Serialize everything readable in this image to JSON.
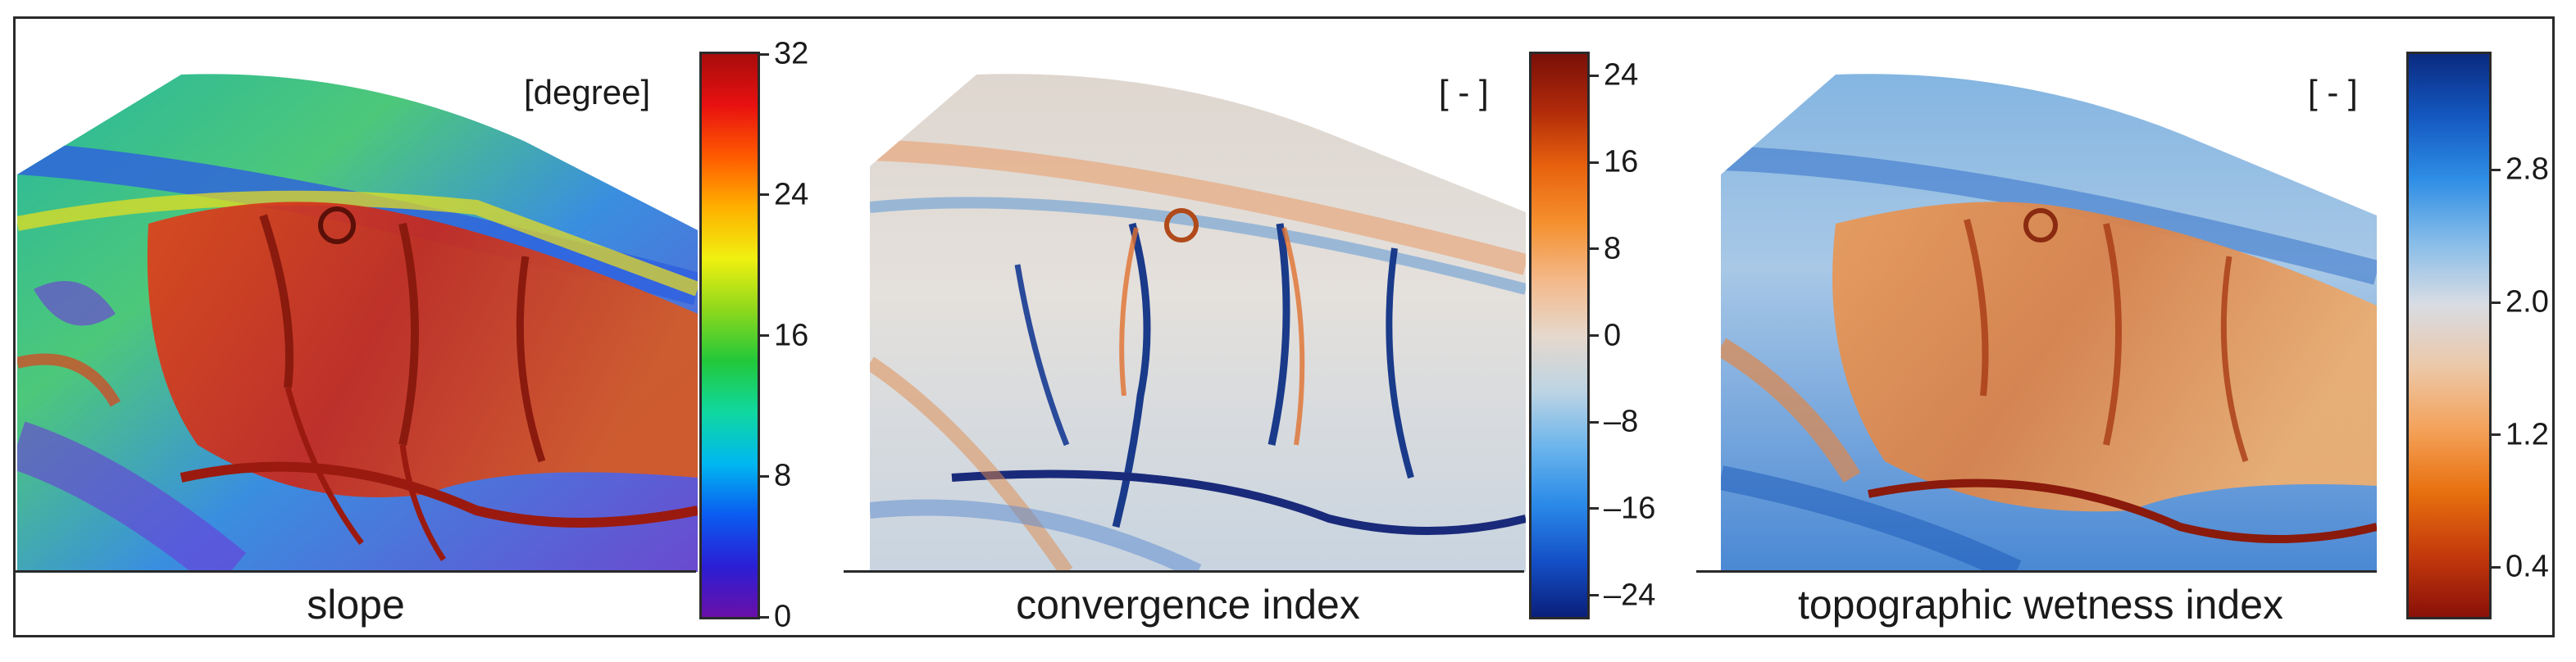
{
  "panels": [
    {
      "caption": "slope",
      "unit": "[degree]",
      "colorbar": {
        "min": 0,
        "max": 32,
        "ticks": [
          {
            "value": 32,
            "label": "32"
          },
          {
            "value": 24,
            "label": "24"
          },
          {
            "value": 16,
            "label": "16"
          },
          {
            "value": 8,
            "label": "8"
          },
          {
            "value": 0,
            "label": "0"
          }
        ],
        "colors": [
          "#6a0fa8",
          "#2a1fd6",
          "#0a5cf0",
          "#00b8f0",
          "#10d8a0",
          "#22c83a",
          "#8ed81c",
          "#f0f010",
          "#ffb000",
          "#ff5a00",
          "#e81010",
          "#a80c0c"
        ]
      }
    },
    {
      "caption": "convergence index",
      "unit": "[ - ]",
      "colorbar": {
        "min": -26,
        "max": 26,
        "ticks": [
          {
            "value": 24,
            "label": "24"
          },
          {
            "value": 16,
            "label": "16"
          },
          {
            "value": 8,
            "label": "8"
          },
          {
            "value": 0,
            "label": "0"
          },
          {
            "value": -8,
            "label": "–8"
          },
          {
            "value": -16,
            "label": "–16"
          },
          {
            "value": -24,
            "label": "–24"
          }
        ],
        "colors": [
          "#0a1f7a",
          "#1450c8",
          "#2a8ae8",
          "#6ab4ec",
          "#bcd4e4",
          "#e6d8cc",
          "#f4b888",
          "#f5902e",
          "#e8620e",
          "#b02a0a",
          "#7a1008"
        ]
      }
    },
    {
      "caption": "topographic wetness index",
      "unit": "[ - ]",
      "colorbar": {
        "min": 0.1,
        "max": 3.5,
        "ticks": [
          {
            "value": 2.8,
            "label": "2.8"
          },
          {
            "value": 2.0,
            "label": "2.0"
          },
          {
            "value": 1.2,
            "label": "1.2"
          },
          {
            "value": 0.4,
            "label": "0.4"
          }
        ],
        "colors": [
          "#8a1008",
          "#c43a0c",
          "#e8700e",
          "#f4a25a",
          "#ecc8a8",
          "#d8dce4",
          "#86bce8",
          "#2e8ee6",
          "#1458c0",
          "#0a2a80"
        ]
      }
    }
  ]
}
